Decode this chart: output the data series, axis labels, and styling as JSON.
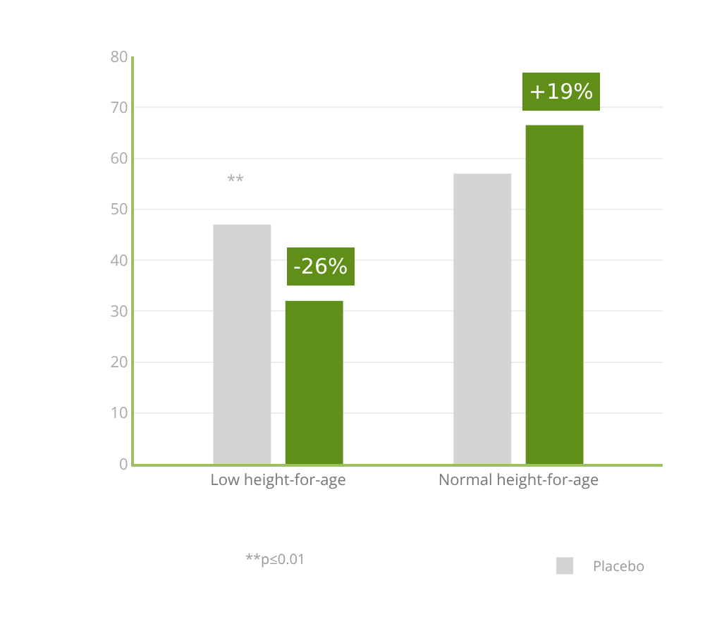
{
  "chart_data": {
    "type": "bar",
    "categories": [
      "Low height-for-age",
      "Normal height-for-age"
    ],
    "series": [
      {
        "name": "Placebo",
        "color": "#d4d4d4",
        "values": [
          47,
          57
        ]
      },
      {
        "color": "#5f8f18",
        "values": [
          32,
          66.5
        ]
      }
    ],
    "ylim": [
      0,
      80
    ],
    "yticks": [
      0,
      10,
      20,
      30,
      40,
      50,
      60,
      70,
      80
    ],
    "grid": "y",
    "legend": "bottom",
    "annotations": [
      "**",
      "-26%",
      "+19%",
      "**p≤0.01"
    ]
  }
}
